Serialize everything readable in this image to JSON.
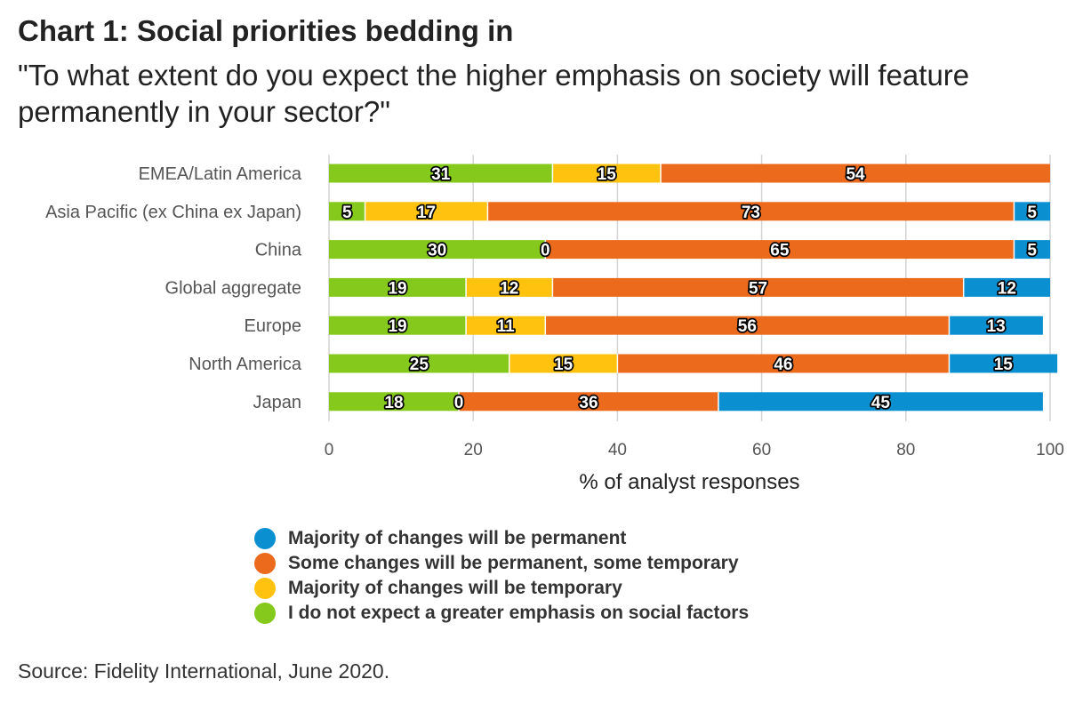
{
  "title": "Chart 1: Social priorities bedding in",
  "subtitle": "\"To what extent do you expect the higher emphasis on society will feature permanently in your sector?\"",
  "source": "Source: Fidelity International, June 2020.",
  "colors": {
    "permanent": "#0a8fd0",
    "some": "#ec6a1c",
    "temporary": "#ffc20e",
    "none": "#84c91c"
  },
  "chart_data": {
    "type": "bar",
    "orientation": "horizontal",
    "stacked": true,
    "categories": [
      "EMEA/Latin America",
      "Asia Pacific (ex China ex Japan)",
      "China",
      "Global aggregate",
      "Europe",
      "North America",
      "Japan"
    ],
    "series": [
      {
        "name": "I do not expect a greater emphasis on social factors",
        "color": "#84c91c",
        "values": [
          31,
          5,
          30,
          19,
          19,
          25,
          18
        ]
      },
      {
        "name": "Majority of changes will be temporary",
        "color": "#ffc20e",
        "values": [
          15,
          17,
          0,
          12,
          11,
          15,
          0
        ]
      },
      {
        "name": "Some changes will be permanent, some temporary",
        "color": "#ec6a1c",
        "values": [
          54,
          73,
          65,
          57,
          56,
          46,
          36
        ]
      },
      {
        "name": "Majority of changes will be permanent",
        "color": "#0a8fd0",
        "values": [
          0,
          5,
          5,
          12,
          13,
          15,
          45
        ]
      }
    ],
    "xlabel": "% of analyst responses",
    "ylabel": "",
    "xlim": [
      0,
      100
    ],
    "xticks": [
      0,
      20,
      40,
      60,
      80,
      100
    ],
    "grid": true,
    "legend_position": "bottom",
    "legend_order": [
      "Majority of changes will be permanent",
      "Some changes will be permanent, some temporary",
      "Majority of changes will be temporary",
      "I do not expect a greater emphasis on social factors"
    ]
  },
  "legend": [
    {
      "label": "Majority of changes will be permanent",
      "color": "#0a8fd0"
    },
    {
      "label": "Some changes will be permanent, some temporary",
      "color": "#ec6a1c"
    },
    {
      "label": "Majority of changes will be temporary",
      "color": "#ffc20e"
    },
    {
      "label": "I do not expect a greater emphasis on social factors",
      "color": "#84c91c"
    }
  ]
}
